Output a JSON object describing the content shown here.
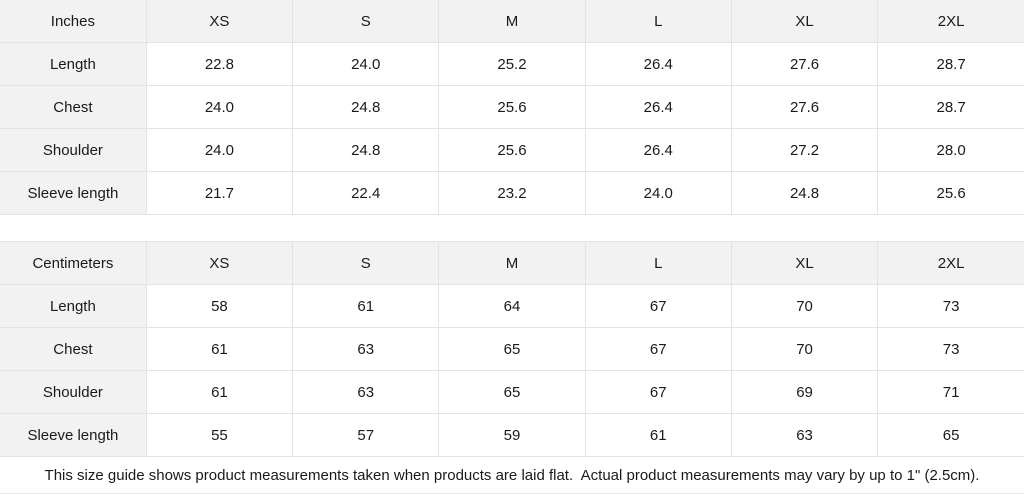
{
  "tables": [
    {
      "unit_label": "Inches",
      "columns": [
        "XS",
        "S",
        "M",
        "L",
        "XL",
        "2XL"
      ],
      "rows": [
        {
          "label": "Length",
          "values": [
            "22.8",
            "24.0",
            "25.2",
            "26.4",
            "27.6",
            "28.7"
          ]
        },
        {
          "label": "Chest",
          "values": [
            "24.0",
            "24.8",
            "25.6",
            "26.4",
            "27.6",
            "28.7"
          ]
        },
        {
          "label": "Shoulder",
          "values": [
            "24.0",
            "24.8",
            "25.6",
            "26.4",
            "27.2",
            "28.0"
          ]
        },
        {
          "label": "Sleeve length",
          "values": [
            "21.7",
            "22.4",
            "23.2",
            "24.0",
            "24.8",
            "25.6"
          ]
        }
      ]
    },
    {
      "unit_label": "Centimeters",
      "columns": [
        "XS",
        "S",
        "M",
        "L",
        "XL",
        "2XL"
      ],
      "rows": [
        {
          "label": "Length",
          "values": [
            "58",
            "61",
            "64",
            "67",
            "70",
            "73"
          ]
        },
        {
          "label": "Chest",
          "values": [
            "61",
            "63",
            "65",
            "67",
            "70",
            "73"
          ]
        },
        {
          "label": "Shoulder",
          "values": [
            "61",
            "63",
            "65",
            "67",
            "69",
            "71"
          ]
        },
        {
          "label": "Sleeve length",
          "values": [
            "55",
            "57",
            "59",
            "61",
            "63",
            "65"
          ]
        }
      ]
    }
  ],
  "footer": {
    "note": "This size guide shows product measurements taken when products are laid flat.  Actual product measurements may vary by up to 1\" (2.5cm)."
  },
  "colors": {
    "header_fill": "#f2f2f2",
    "cell_fill": "#ffffff",
    "border": "#e3e3e3",
    "text": "#1a1a1a"
  }
}
